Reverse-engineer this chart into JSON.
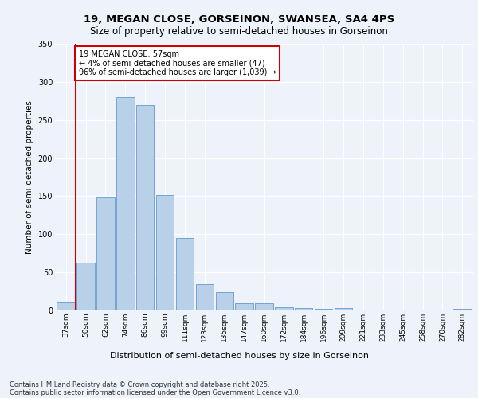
{
  "title1": "19, MEGAN CLOSE, GORSEINON, SWANSEA, SA4 4PS",
  "title2": "Size of property relative to semi-detached houses in Gorseinon",
  "xlabel": "Distribution of semi-detached houses by size in Gorseinon",
  "ylabel": "Number of semi-detached properties",
  "categories": [
    "37sqm",
    "50sqm",
    "62sqm",
    "74sqm",
    "86sqm",
    "99sqm",
    "111sqm",
    "123sqm",
    "135sqm",
    "147sqm",
    "160sqm",
    "172sqm",
    "184sqm",
    "196sqm",
    "209sqm",
    "221sqm",
    "233sqm",
    "245sqm",
    "258sqm",
    "270sqm",
    "282sqm"
  ],
  "values": [
    10,
    63,
    148,
    280,
    270,
    152,
    95,
    35,
    24,
    9,
    9,
    4,
    3,
    2,
    3,
    1,
    0,
    1,
    0,
    0,
    2
  ],
  "bar_color": "#b8d0e8",
  "bar_edge_color": "#6699cc",
  "vline_x_index": 1,
  "annotation_text": "19 MEGAN CLOSE: 57sqm\n← 4% of semi-detached houses are smaller (47)\n96% of semi-detached houses are larger (1,039) →",
  "annotation_box_color": "#ffffff",
  "annotation_box_edge": "#cc0000",
  "vline_color": "#cc0000",
  "ylim": [
    0,
    350
  ],
  "yticks": [
    0,
    50,
    100,
    150,
    200,
    250,
    300,
    350
  ],
  "footer1": "Contains HM Land Registry data © Crown copyright and database right 2025.",
  "footer2": "Contains public sector information licensed under the Open Government Licence v3.0.",
  "bg_color": "#eef2fb",
  "grid_color": "#ffffff"
}
